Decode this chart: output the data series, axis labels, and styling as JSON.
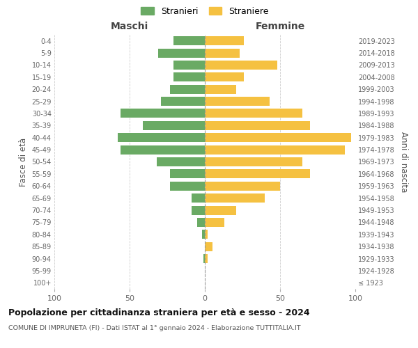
{
  "age_groups": [
    "100+",
    "95-99",
    "90-94",
    "85-89",
    "80-84",
    "75-79",
    "70-74",
    "65-69",
    "60-64",
    "55-59",
    "50-54",
    "45-49",
    "40-44",
    "35-39",
    "30-34",
    "25-29",
    "20-24",
    "15-19",
    "10-14",
    "5-9",
    "0-4"
  ],
  "birth_years": [
    "≤ 1923",
    "1924-1928",
    "1929-1933",
    "1934-1938",
    "1939-1943",
    "1944-1948",
    "1949-1953",
    "1954-1958",
    "1959-1963",
    "1964-1968",
    "1969-1973",
    "1974-1978",
    "1979-1983",
    "1984-1988",
    "1989-1993",
    "1994-1998",
    "1999-2003",
    "2004-2008",
    "2009-2013",
    "2014-2018",
    "2019-2023"
  ],
  "males": [
    0,
    0,
    1,
    0,
    2,
    5,
    9,
    9,
    23,
    23,
    32,
    56,
    58,
    41,
    56,
    29,
    23,
    21,
    21,
    31,
    21
  ],
  "females": [
    0,
    0,
    2,
    5,
    2,
    13,
    21,
    40,
    50,
    70,
    65,
    93,
    97,
    70,
    65,
    43,
    21,
    26,
    48,
    23,
    26
  ],
  "male_color": "#6aaa64",
  "female_color": "#f5c141",
  "background_color": "#ffffff",
  "grid_color": "#cccccc",
  "title": "Popolazione per cittadinanza straniera per età e sesso - 2024",
  "subtitle": "COMUNE DI IMPRUNETA (FI) - Dati ISTAT al 1° gennaio 2024 - Elaborazione TUTTITALIA.IT",
  "xlabel_left": "Maschi",
  "xlabel_right": "Femmine",
  "ylabel_left": "Fasce di età",
  "ylabel_right": "Anni di nascita",
  "xlim": 100,
  "legend_stranieri": "Stranieri",
  "legend_straniere": "Straniere"
}
